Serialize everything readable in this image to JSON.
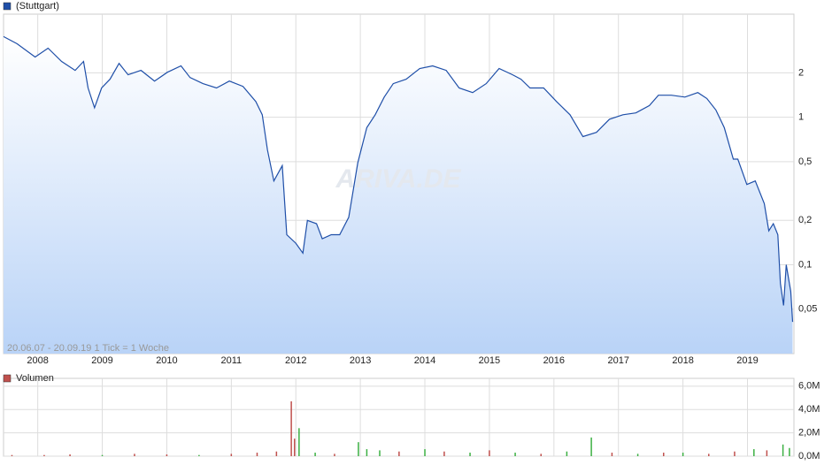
{
  "chart_data": [
    {
      "type": "line",
      "legend": "(Stuttgart)",
      "subtitle": "20.06.07 - 20.09.19   1 Tick = 1 Woche",
      "watermark": "ARIVA.DE",
      "log_y": true,
      "grid": true,
      "color": "#1f4fa8",
      "x": [
        2007.47,
        2007.68,
        2007.96,
        2008.16,
        2008.37,
        2008.58,
        2008.71,
        2008.78,
        2008.88,
        2008.99,
        2009.12,
        2009.26,
        2009.4,
        2009.6,
        2009.81,
        2010.01,
        2010.22,
        2010.36,
        2010.56,
        2010.77,
        2010.97,
        2011.18,
        2011.38,
        2011.48,
        2011.56,
        2011.66,
        2011.79,
        2011.86,
        2012.0,
        2012.11,
        2012.18,
        2012.32,
        2012.41,
        2012.55,
        2012.68,
        2012.82,
        2012.96,
        2013.1,
        2013.23,
        2013.37,
        2013.51,
        2013.71,
        2013.92,
        2014.12,
        2014.33,
        2014.53,
        2014.74,
        2014.95,
        2015.15,
        2015.36,
        2015.49,
        2015.63,
        2015.84,
        2016.04,
        2016.25,
        2016.45,
        2016.66,
        2016.86,
        2017.07,
        2017.27,
        2017.48,
        2017.62,
        2017.82,
        2018.03,
        2018.23,
        2018.37,
        2018.51,
        2018.64,
        2018.78,
        2018.85,
        2018.99,
        2019.12,
        2019.26,
        2019.33,
        2019.4,
        2019.47,
        2019.51,
        2019.56,
        2019.6,
        2019.67,
        2019.7
      ],
      "values": [
        3.52,
        3.15,
        2.56,
        2.94,
        2.39,
        2.08,
        2.39,
        1.58,
        1.16,
        1.58,
        1.81,
        2.32,
        1.94,
        2.08,
        1.76,
        2.02,
        2.23,
        1.86,
        1.69,
        1.58,
        1.76,
        1.62,
        1.28,
        1.04,
        0.6,
        0.37,
        0.47,
        0.16,
        0.14,
        0.12,
        0.2,
        0.19,
        0.15,
        0.16,
        0.16,
        0.21,
        0.49,
        0.85,
        1.04,
        1.37,
        1.69,
        1.81,
        2.14,
        2.23,
        2.08,
        1.58,
        1.47,
        1.69,
        2.14,
        1.94,
        1.81,
        1.58,
        1.58,
        1.28,
        1.04,
        0.74,
        0.79,
        0.97,
        1.04,
        1.07,
        1.2,
        1.41,
        1.41,
        1.37,
        1.47,
        1.34,
        1.12,
        0.85,
        0.52,
        0.52,
        0.35,
        0.37,
        0.26,
        0.17,
        0.19,
        0.16,
        0.075,
        0.053,
        0.1,
        0.066,
        0.041
      ],
      "xlim": [
        2007.47,
        2019.72
      ],
      "xticks": [
        2008,
        2009,
        2010,
        2011,
        2012,
        2013,
        2014,
        2015,
        2016,
        2017,
        2018,
        2019
      ],
      "ylim": [
        0.025,
        5
      ],
      "yticks": [
        {
          "value": 0.05,
          "label": "0,05"
        },
        {
          "value": 0.1,
          "label": "0,1"
        },
        {
          "value": 0.2,
          "label": "0,2"
        },
        {
          "value": 0.5,
          "label": "0,5"
        },
        1,
        2
      ]
    },
    {
      "type": "bar",
      "legend": "Volumen",
      "color": "#c0504d",
      "grid": true,
      "x": [
        2007.6,
        2008.1,
        2008.5,
        2009.0,
        2009.5,
        2010.0,
        2010.5,
        2011.0,
        2011.4,
        2011.7,
        2011.93,
        2011.98,
        2012.05,
        2012.3,
        2012.6,
        2012.97,
        2013.1,
        2013.3,
        2013.6,
        2014.0,
        2014.3,
        2014.7,
        2015.0,
        2015.4,
        2015.8,
        2016.2,
        2016.58,
        2016.9,
        2017.3,
        2017.7,
        2018.0,
        2018.4,
        2018.8,
        2019.1,
        2019.3,
        2019.55,
        2019.65
      ],
      "values": [
        100000,
        100000,
        150000,
        100000,
        200000,
        150000,
        100000,
        200000,
        300000,
        400000,
        4700000,
        1500000,
        2400000,
        300000,
        200000,
        1200000,
        600000,
        500000,
        400000,
        600000,
        400000,
        300000,
        500000,
        300000,
        200000,
        400000,
        1600000,
        300000,
        200000,
        300000,
        300000,
        200000,
        400000,
        600000,
        500000,
        1000000,
        700000
      ],
      "colors": [
        "#c0504d",
        "#c0504d",
        "#c0504d",
        "#3cb043",
        "#c0504d",
        "#c0504d",
        "#3cb043",
        "#c0504d",
        "#c0504d",
        "#c0504d",
        "#c0504d",
        "#c0504d",
        "#3cb043",
        "#3cb043",
        "#c0504d",
        "#3cb043",
        "#3cb043",
        "#3cb043",
        "#c0504d",
        "#3cb043",
        "#c0504d",
        "#3cb043",
        "#c0504d",
        "#3cb043",
        "#c0504d",
        "#3cb043",
        "#3cb043",
        "#c0504d",
        "#3cb043",
        "#c0504d",
        "#3cb043",
        "#c0504d",
        "#c0504d",
        "#3cb043",
        "#c0504d",
        "#3cb043",
        "#3cb043"
      ],
      "xlim": [
        2007.47,
        2019.72
      ],
      "xticks": [
        2008,
        2009,
        2010,
        2011,
        2012,
        2013,
        2014,
        2015,
        2016,
        2017,
        2018,
        2019
      ],
      "ylim": [
        0,
        6670000
      ],
      "yticks": [
        {
          "value": 0,
          "label": "0,0M"
        },
        {
          "value": 2000000,
          "label": "2,0M"
        },
        {
          "value": 4000000,
          "label": "4,0M"
        },
        {
          "value": 6000000,
          "label": "6,0M"
        }
      ]
    }
  ]
}
